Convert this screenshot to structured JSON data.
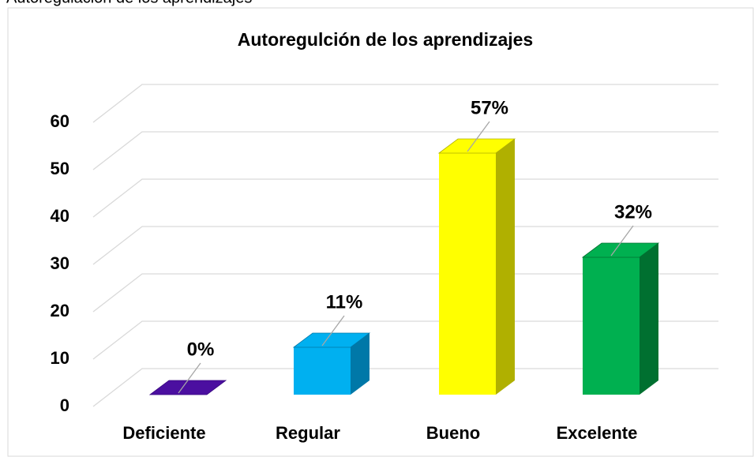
{
  "caption": "Autoregulación de los aprendizajes",
  "chart_data": {
    "type": "bar3d",
    "title": "Autoregulción de los aprendizajes",
    "categories": [
      "Deficiente",
      "Regular",
      "Bueno",
      "Excelente"
    ],
    "values": [
      0,
      10,
      51,
      29
    ],
    "value_labels": [
      "0%",
      "11%",
      "57%",
      "32%"
    ],
    "colors": [
      "#4b0fa0",
      "#00b0f0",
      "#ffff00",
      "#00b050"
    ],
    "side_colors": [
      "#3a0a80",
      "#0078a8",
      "#b0b000",
      "#007030"
    ],
    "ylim": [
      0,
      60
    ],
    "yticks": [
      0,
      10,
      20,
      30,
      40,
      50,
      60
    ],
    "grid": true
  }
}
